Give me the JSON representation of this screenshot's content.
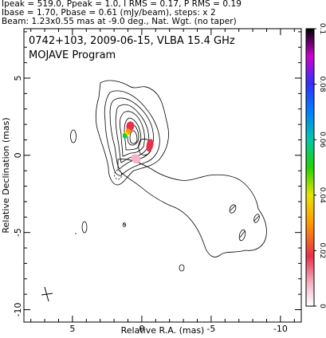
{
  "header": {
    "line1": "Ipeak = 519.0, Ppeak = 1.0, I RMS = 0.17, P RMS = 0.19",
    "line2": "Ibase = 1.70, Pbase = 0.61 (mJy/beam), steps: x 2",
    "line3": "Beam: 1.23x0.55 mas at -9.0 deg., Nat. Wgt. (no taper)"
  },
  "plot": {
    "title_line1": "0742+103, 2009-06-15, VLBA 15.4 GHz",
    "title_line2": "MOJAVE Program"
  },
  "chart_data": {
    "type": "contour",
    "xlabel": "Relative R.A. (mas)",
    "ylabel": "Relative Declination (mas)",
    "xlim": [
      8.5,
      -11.5
    ],
    "ylim": [
      -10.8,
      8.2
    ],
    "x_ticks": [
      5,
      0,
      -5,
      -10
    ],
    "x_tick_labels": [
      "5",
      "0",
      "-5",
      "-10"
    ],
    "y_ticks": [
      5,
      0,
      -5,
      -10
    ],
    "y_tick_labels": [
      "5",
      "0",
      "-5",
      "-10"
    ],
    "colorbar": {
      "range": [
        0,
        0.1
      ],
      "ticks": [
        0,
        0.02,
        0.04,
        0.06,
        0.08,
        0.1
      ],
      "tick_labels": [
        "0",
        "0.02",
        "0.04",
        "0.06",
        "0.08",
        "0.1"
      ]
    },
    "core_position": [
      0,
      0
    ],
    "beam": {
      "major": 1.23,
      "minor": 0.55,
      "pa_deg": -9.0
    }
  }
}
